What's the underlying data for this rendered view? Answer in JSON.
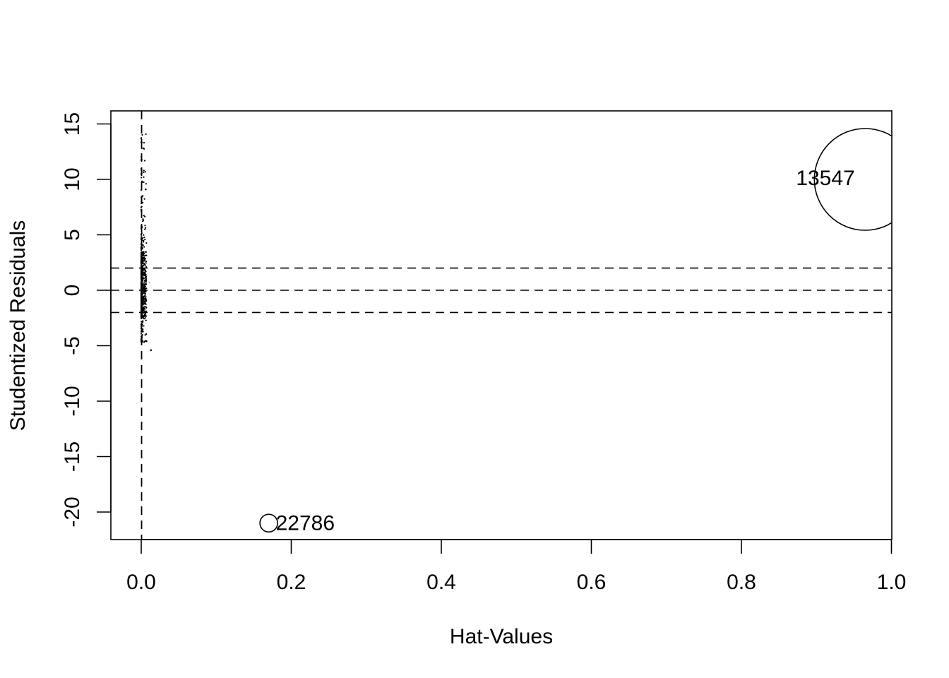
{
  "chart_data": {
    "type": "scatter",
    "title": "",
    "xlabel": "Hat-Values",
    "ylabel": "Studentized Residuals",
    "xlim": [
      -0.01,
      1.0
    ],
    "ylim": [
      -22.3,
      15.8
    ],
    "xticks": [
      0.0,
      0.2,
      0.4,
      0.6,
      0.8,
      1.0
    ],
    "xtick_labels": [
      "0.0",
      "0.2",
      "0.4",
      "0.6",
      "0.8",
      "1.0"
    ],
    "yticks": [
      -20,
      -15,
      -10,
      -5,
      0,
      5,
      10,
      15
    ],
    "ytick_labels": [
      "-20",
      "-15",
      "-10",
      "-5",
      "0",
      "5",
      "10",
      "15"
    ],
    "reference_lines": {
      "horizontal": [
        -2,
        0,
        2
      ],
      "vertical": [
        0.0005
      ],
      "style": "dashed"
    },
    "grid": false,
    "highlighted_points": [
      {
        "label": "13547",
        "x": 0.965,
        "y": 10.0,
        "bubble_size": "large"
      },
      {
        "label": "22786",
        "x": 0.17,
        "y": -21.0,
        "bubble_size": "small"
      }
    ],
    "bulk_points_description_range": {
      "x": [
        0.0,
        0.015
      ],
      "y": [
        -5.5,
        15.0
      ]
    }
  },
  "colors": {
    "points": "#000000",
    "faint_points": "#bbbbbb",
    "lines": "#000000",
    "background": "#ffffff"
  }
}
